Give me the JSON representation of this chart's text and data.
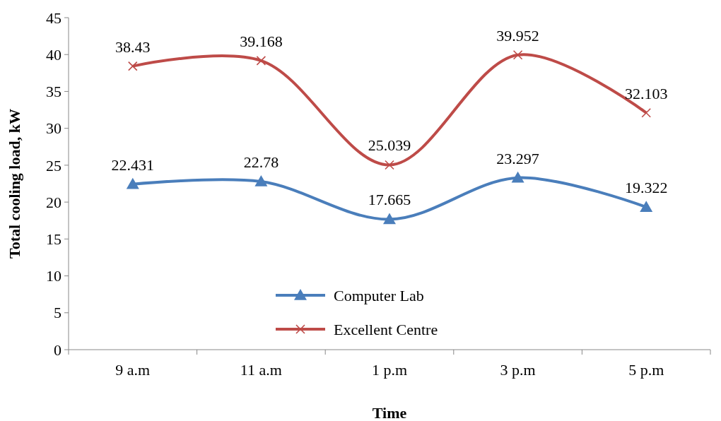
{
  "chart_data": {
    "type": "line",
    "xlabel": "Time",
    "ylabel": "Total cooling load, kW",
    "categories": [
      "9 a.m",
      "11 a.m",
      "1 p.m",
      "3 p.m",
      "5 p.m"
    ],
    "series": [
      {
        "name": "Computer Lab",
        "color": "#4a7ebb",
        "marker": "triangle",
        "values": [
          22.431,
          22.78,
          17.665,
          23.297,
          19.322
        ]
      },
      {
        "name": "Excellent Centre",
        "color": "#be4b48",
        "marker": "cross",
        "values": [
          38.43,
          39.168,
          25.039,
          39.952,
          32.103
        ]
      }
    ],
    "ylim": [
      0,
      45
    ],
    "yticks": [
      0,
      5,
      10,
      15,
      20,
      25,
      30,
      35,
      40,
      45
    ],
    "grid": false,
    "legend": "bottom",
    "data_labels": true
  }
}
